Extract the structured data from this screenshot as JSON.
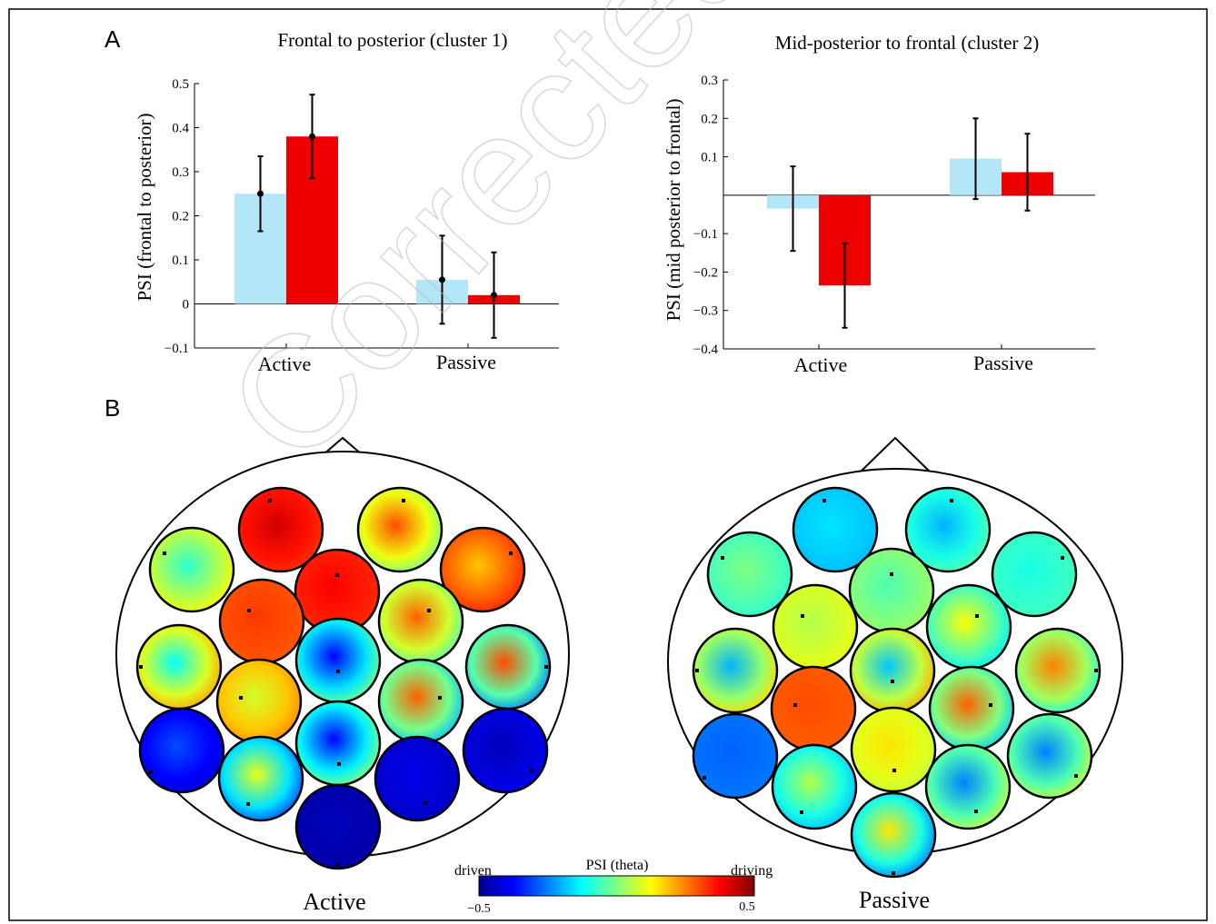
{
  "panel_labels": {
    "a": "A",
    "b": "B"
  },
  "watermark": "Corrected Proof",
  "colors": {
    "light_blue": "#b3e6f7",
    "red": "#ee0000",
    "black": "#000000"
  },
  "chart_data": [
    {
      "type": "bar",
      "title": "Frontal to posterior (cluster 1)",
      "ylabel": "PSI (frontal to posterior)",
      "xlabel": "",
      "categories": [
        "Active",
        "Passive"
      ],
      "ylim": [
        -0.1,
        0.5
      ],
      "yticks": [
        -0.1,
        0,
        0.1,
        0.2,
        0.3,
        0.4,
        0.5
      ],
      "ytick_labels": [
        "−0.1",
        "0",
        "0.1",
        "0.2",
        "0.3",
        "0.4",
        "0.5"
      ],
      "series": [
        {
          "color": "#b3e6f7",
          "values": [
            0.25,
            0.055
          ],
          "error": [
            0.085,
            0.1
          ]
        },
        {
          "color": "#ee0000",
          "values": [
            0.38,
            0.02
          ],
          "error": [
            0.095,
            0.097
          ]
        }
      ],
      "grid": false,
      "legend": "none"
    },
    {
      "type": "bar",
      "title": "Mid-posterior to frontal (cluster 2)",
      "ylabel": "PSI (mid posterior to frontal)",
      "xlabel": "",
      "categories": [
        "Active",
        "Passive"
      ],
      "ylim": [
        -0.4,
        0.3
      ],
      "yticks": [
        -0.4,
        -0.3,
        -0.2,
        -0.1,
        0.1,
        0.2,
        0.3
      ],
      "ytick_labels": [
        "−0.4",
        "−0.3",
        "−0.2",
        "−0.1",
        "0.1",
        "0.2",
        "0.3"
      ],
      "series": [
        {
          "color": "#b3e6f7",
          "values": [
            -0.035,
            0.095
          ],
          "error": [
            0.11,
            0.105
          ]
        },
        {
          "color": "#ee0000",
          "values": [
            -0.235,
            0.06
          ],
          "error": [
            0.11,
            0.1
          ]
        }
      ],
      "grid": false,
      "legend": "none"
    }
  ],
  "topomaps": {
    "active_label": "Active",
    "passive_label": "Passive",
    "colorbar": {
      "title": "PSI (theta)",
      "left_label": "driven",
      "right_label": "driving",
      "min_label": "−0.5",
      "max_label": "0.5",
      "range": [
        -0.5,
        0.5
      ]
    },
    "active_values": [
      0.42,
      0.3,
      -0.08,
      0.18,
      0.38,
      0.32,
      0.28,
      -0.12,
      0.3,
      -0.38,
      0.08,
      0.28,
      -0.3,
      -0.45,
      -0.38,
      0.1,
      -0.4,
      -0.45,
      -0.48
    ],
    "passive_values": [
      -0.15,
      -0.2,
      0.0,
      -0.1,
      -0.05,
      0.05,
      0.12,
      -0.2,
      0.25,
      -0.18,
      0.3,
      0.28,
      -0.28,
      -0.25,
      0.15,
      0.05,
      -0.25,
      0.15,
      -0.35
    ]
  }
}
